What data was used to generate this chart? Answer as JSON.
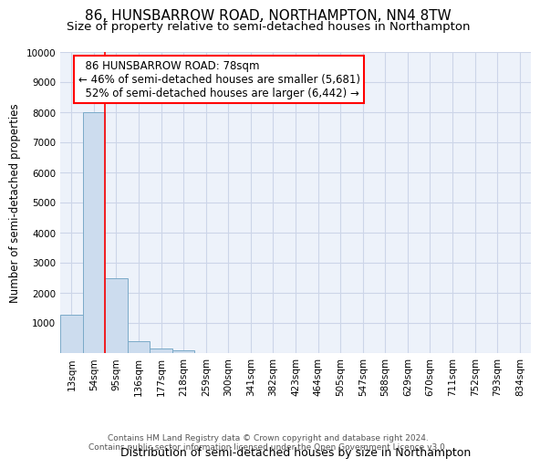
{
  "title1": "86, HUNSBARROW ROAD, NORTHAMPTON, NN4 8TW",
  "title2": "Size of property relative to semi-detached houses in Northampton",
  "xlabel": "Distribution of semi-detached houses by size in Northampton",
  "ylabel": "Number of semi-detached properties",
  "footer1": "Contains HM Land Registry data © Crown copyright and database right 2024.",
  "footer2": "Contains public sector information licensed under the Open Government Licence v3.0.",
  "categories": [
    "13sqm",
    "54sqm",
    "95sqm",
    "136sqm",
    "177sqm",
    "218sqm",
    "259sqm",
    "300sqm",
    "341sqm",
    "382sqm",
    "423sqm",
    "464sqm",
    "505sqm",
    "547sqm",
    "588sqm",
    "629sqm",
    "670sqm",
    "711sqm",
    "752sqm",
    "793sqm",
    "834sqm"
  ],
  "values": [
    1300,
    8000,
    2500,
    400,
    175,
    100,
    0,
    0,
    0,
    0,
    0,
    0,
    0,
    0,
    0,
    0,
    0,
    0,
    0,
    0,
    0
  ],
  "bar_color": "#ccdcee",
  "bar_edge_color": "#7aaac8",
  "ylim": [
    0,
    10000
  ],
  "yticks": [
    0,
    1000,
    2000,
    3000,
    4000,
    5000,
    6000,
    7000,
    8000,
    9000,
    10000
  ],
  "property_label": "86 HUNSBARROW ROAD: 78sqm",
  "pct_smaller": 46,
  "pct_smaller_count": "5,681",
  "pct_larger": 52,
  "pct_larger_count": "6,442",
  "red_line_x": 1.5,
  "grid_color": "#ccd5e8",
  "bg_color": "#edf2fa",
  "title1_fontsize": 11,
  "title2_fontsize": 9.5,
  "annot_fontsize": 8.5,
  "ylabel_fontsize": 8.5,
  "xlabel_fontsize": 9,
  "tick_fontsize": 7.5,
  "footer_fontsize": 6.5
}
